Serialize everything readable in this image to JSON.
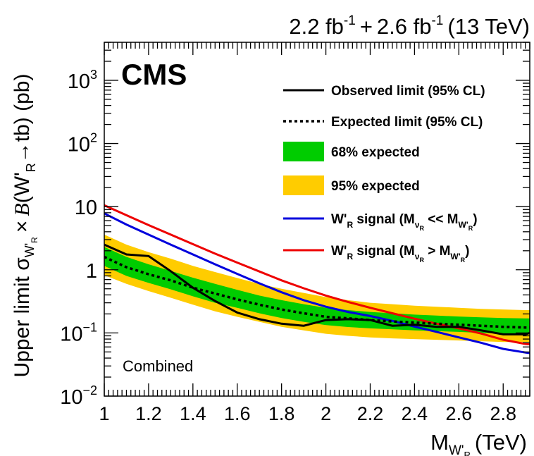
{
  "chart_data": {
    "type": "line",
    "title_right": "2.2 fb⁻¹ + 2.6 fb⁻¹ (13 TeV)",
    "lumi": {
      "a": "2.2 fb",
      "b": "2.6 fb",
      "exp": "-1",
      "plus": "+",
      "energy": "(13 TeV)"
    },
    "experiment": "CMS",
    "annotation": "Combined",
    "xlabel": {
      "main": "M",
      "sub": "W'",
      "subsub": "R",
      "unit": "(TeV)"
    },
    "ylabel": {
      "prefix": "Upper limit σ",
      "sub": "W'",
      "subsub": "R",
      "times": "×",
      "B": "B",
      "process_open": "(W'",
      "process_sub": "R",
      "process_close": "→tb) (pb)"
    },
    "xlim": [
      1.0,
      2.92
    ],
    "ylim": [
      0.01,
      4000
    ],
    "yscale": "log",
    "x_ticks": [
      {
        "v": 1.0,
        "label": "1"
      },
      {
        "v": 1.2,
        "label": "1.2"
      },
      {
        "v": 1.4,
        "label": "1.4"
      },
      {
        "v": 1.6,
        "label": "1.6"
      },
      {
        "v": 1.8,
        "label": "1.8"
      },
      {
        "v": 2.0,
        "label": "2"
      },
      {
        "v": 2.2,
        "label": "2.2"
      },
      {
        "v": 2.4,
        "label": "2.4"
      },
      {
        "v": 2.6,
        "label": "2.6"
      },
      {
        "v": 2.8,
        "label": "2.8"
      }
    ],
    "y_ticks": [
      {
        "v": 0.01,
        "base": "10",
        "exp": "−2"
      },
      {
        "v": 0.1,
        "base": "10",
        "exp": "−1"
      },
      {
        "v": 1,
        "base": "1",
        "exp": ""
      },
      {
        "v": 10,
        "base": "10",
        "exp": ""
      },
      {
        "v": 100,
        "base": "10",
        "exp": "2"
      },
      {
        "v": 1000,
        "base": "10",
        "exp": "3"
      }
    ],
    "x": [
      1.0,
      1.1,
      1.2,
      1.3,
      1.4,
      1.5,
      1.6,
      1.7,
      1.8,
      1.9,
      2.0,
      2.1,
      2.2,
      2.3,
      2.4,
      2.5,
      2.6,
      2.7,
      2.8,
      2.9,
      2.92
    ],
    "series": [
      {
        "name": "Observed limit (95% CL)",
        "style": "solid",
        "color": "#000000",
        "values": [
          2.5,
          1.75,
          1.65,
          0.95,
          0.52,
          0.32,
          0.21,
          0.165,
          0.14,
          0.13,
          0.16,
          0.165,
          0.16,
          0.13,
          0.135,
          0.125,
          0.125,
          0.11,
          0.095,
          0.095,
          0.1
        ]
      },
      {
        "name": "Expected limit (95% CL)",
        "style": "dotted",
        "color": "#000000",
        "values": [
          1.6,
          1.1,
          0.85,
          0.68,
          0.52,
          0.42,
          0.34,
          0.28,
          0.235,
          0.205,
          0.18,
          0.17,
          0.16,
          0.152,
          0.146,
          0.14,
          0.135,
          0.13,
          0.125,
          0.122,
          0.122
        ]
      },
      {
        "name": "W'R signal (MνR << MW'R)",
        "style": "solid",
        "color": "#0000dd",
        "values": [
          7.8,
          5.2,
          3.6,
          2.5,
          1.75,
          1.22,
          0.86,
          0.61,
          0.44,
          0.33,
          0.26,
          0.215,
          0.185,
          0.155,
          0.126,
          0.104,
          0.085,
          0.07,
          0.056,
          0.049,
          0.048
        ]
      },
      {
        "name": "W'R signal (MνR > MW'R)",
        "style": "solid",
        "color": "#ee0000",
        "values": [
          10.5,
          7.3,
          5.1,
          3.6,
          2.55,
          1.8,
          1.3,
          0.94,
          0.68,
          0.51,
          0.39,
          0.31,
          0.25,
          0.205,
          0.168,
          0.14,
          0.118,
          0.098,
          0.078,
          0.067,
          0.066
        ]
      }
    ],
    "bands": [
      {
        "name": "95% expected",
        "color": "#ffcc00",
        "low": [
          0.82,
          0.6,
          0.46,
          0.36,
          0.28,
          0.22,
          0.18,
          0.15,
          0.125,
          0.11,
          0.097,
          0.09,
          0.085,
          0.082,
          0.08,
          0.078,
          0.076,
          0.074,
          0.072,
          0.072,
          0.072
        ],
        "high": [
          3.6,
          2.5,
          1.9,
          1.5,
          1.15,
          0.92,
          0.74,
          0.6,
          0.5,
          0.43,
          0.37,
          0.33,
          0.3,
          0.285,
          0.27,
          0.26,
          0.25,
          0.24,
          0.235,
          0.23,
          0.23
        ]
      },
      {
        "name": "68% expected",
        "color": "#00cc00",
        "low": [
          1.15,
          0.8,
          0.62,
          0.49,
          0.38,
          0.3,
          0.25,
          0.205,
          0.172,
          0.15,
          0.133,
          0.124,
          0.118,
          0.114,
          0.11,
          0.107,
          0.104,
          0.1,
          0.098,
          0.097,
          0.097
        ],
        "high": [
          2.3,
          1.6,
          1.22,
          0.96,
          0.75,
          0.6,
          0.48,
          0.39,
          0.33,
          0.285,
          0.25,
          0.23,
          0.215,
          0.205,
          0.195,
          0.188,
          0.182,
          0.177,
          0.172,
          0.17,
          0.17
        ]
      }
    ],
    "legend": [
      {
        "label": "Observed limit (95% CL)",
        "kind": "line",
        "color": "#000000",
        "dash": "solid"
      },
      {
        "label": "Expected limit (95% CL)",
        "kind": "line",
        "color": "#000000",
        "dash": "dotted"
      },
      {
        "label": "68% expected",
        "kind": "box",
        "color": "#00cc00"
      },
      {
        "label": "95% expected",
        "kind": "box",
        "color": "#ffcc00"
      },
      {
        "label": "signal-blue",
        "kind": "line",
        "color": "#0000dd",
        "dash": "solid",
        "text": {
          "a": "W'",
          "a_sub": "R",
          "b": " signal (M",
          "b_sub": "ν",
          "b_subsub": "R",
          "rel": " << M",
          "c_sub": "W'",
          "c_subsub": "R",
          "close": ")"
        }
      },
      {
        "label": "signal-red",
        "kind": "line",
        "color": "#ee0000",
        "dash": "solid",
        "text": {
          "a": "W'",
          "a_sub": "R",
          "b": " signal (M",
          "b_sub": "ν",
          "b_subsub": "R",
          "rel": " > M",
          "c_sub": "W'",
          "c_subsub": "R",
          "close": ")"
        }
      }
    ],
    "legend_position": "top-right",
    "grid": false
  }
}
